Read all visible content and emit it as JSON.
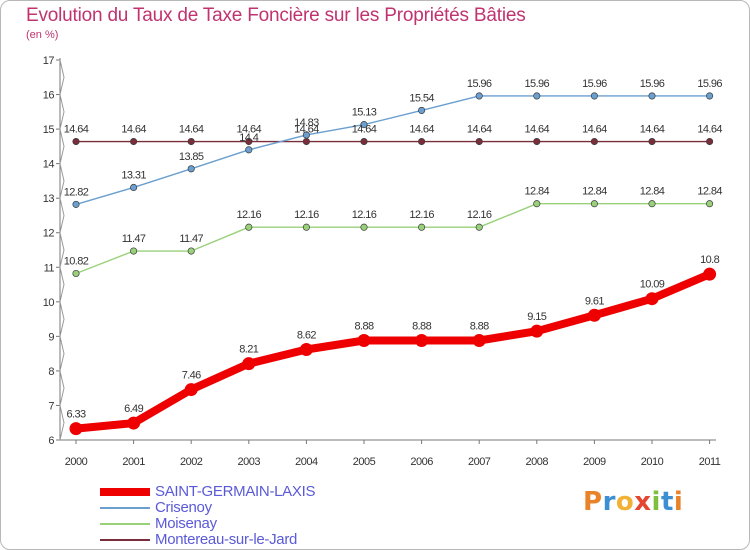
{
  "title": "Evolution du Taux de Taxe Foncière sur les Propriétés Bâties",
  "subtitle": "(en %)",
  "logo": {
    "letters": [
      "P",
      "r",
      "o",
      "x",
      "i",
      "t",
      "i"
    ],
    "colors": [
      "#e8832a",
      "#3d8fd4",
      "#f2b134",
      "#e5462f",
      "#7fbf3f",
      "#3d8fd4",
      "#e8832a"
    ]
  },
  "chart_data": {
    "type": "line",
    "title": "Evolution du Taux de Taxe Foncière sur les Propriétés Bâties",
    "ylabel": "(en %)",
    "xlabel": "",
    "x": [
      "2000",
      "2001",
      "2002",
      "2003",
      "2004",
      "2005",
      "2006",
      "2007",
      "2008",
      "2009",
      "2010",
      "2011"
    ],
    "ylim": [
      6,
      17
    ],
    "yticks": [
      "6",
      "7",
      "8",
      "9",
      "10",
      "11",
      "12",
      "13",
      "14",
      "15",
      "16",
      "17"
    ],
    "grid": false,
    "legend_position": "bottom-left",
    "series": [
      {
        "name": "SAINT-GERMAIN-LAXIS",
        "color": "#ee0000",
        "values": [
          6.33,
          6.49,
          7.46,
          8.21,
          8.62,
          8.88,
          8.88,
          8.88,
          9.15,
          9.61,
          10.09,
          10.8
        ],
        "labels": [
          "6.33",
          "6.49",
          "7.46",
          "8.21",
          "8.62",
          "8.88",
          "8.88",
          "8.88",
          "9.15",
          "9.61",
          "10.09",
          "10.8"
        ]
      },
      {
        "name": "Crisenoy",
        "color": "#6a9fcf",
        "values": [
          12.82,
          13.31,
          13.85,
          14.4,
          14.83,
          15.13,
          15.54,
          15.96,
          15.96,
          15.96,
          15.96,
          15.96
        ],
        "labels": [
          "12.82",
          "13.31",
          "13.85",
          "14.4",
          "14.83",
          "15.13",
          "15.54",
          "15.96",
          "15.96",
          "15.96",
          "15.96",
          "15.96"
        ]
      },
      {
        "name": "Moisenay",
        "color": "#99d17a",
        "values": [
          10.82,
          11.47,
          11.47,
          12.16,
          12.16,
          12.16,
          12.16,
          12.16,
          12.84,
          12.84,
          12.84,
          12.84
        ],
        "labels": [
          "10.82",
          "11.47",
          "11.47",
          "12.16",
          "12.16",
          "12.16",
          "12.16",
          "12.16",
          "12.84",
          "12.84",
          "12.84",
          "12.84"
        ]
      },
      {
        "name": "Montereau-sur-le-Jard",
        "color": "#7a2e3b",
        "values": [
          14.64,
          14.64,
          14.64,
          14.64,
          14.64,
          14.64,
          14.64,
          14.64,
          14.64,
          14.64,
          14.64,
          14.64
        ],
        "labels": [
          "14.64",
          "14.64",
          "14.64",
          "14.64",
          "14.64",
          "14.64",
          "14.64",
          "14.64",
          "14.64",
          "14.64",
          "14.64",
          "14.64"
        ]
      }
    ]
  }
}
